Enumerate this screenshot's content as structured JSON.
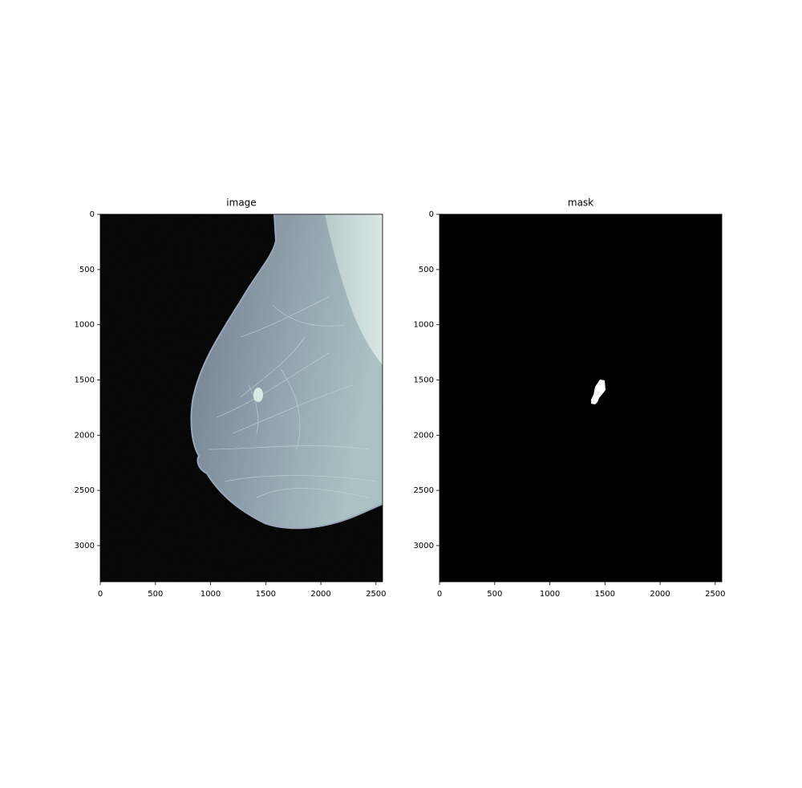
{
  "chart_data": [
    {
      "type": "image",
      "title": "image",
      "xlim": [
        -0.5,
        2559.5
      ],
      "ylim": [
        3327.5,
        -0.5
      ],
      "xticks": [
        0,
        500,
        1000,
        1500,
        2000,
        2500
      ],
      "yticks": [
        0,
        500,
        1000,
        1500,
        2000,
        2500,
        3000
      ]
    },
    {
      "type": "image",
      "title": "mask",
      "xlim": [
        -0.5,
        2559.5
      ],
      "ylim": [
        3327.5,
        -0.5
      ],
      "xticks": [
        0,
        500,
        1000,
        1500,
        2000,
        2500
      ],
      "yticks": [
        0,
        500,
        1000,
        1500,
        2000,
        2500,
        3000
      ]
    }
  ]
}
